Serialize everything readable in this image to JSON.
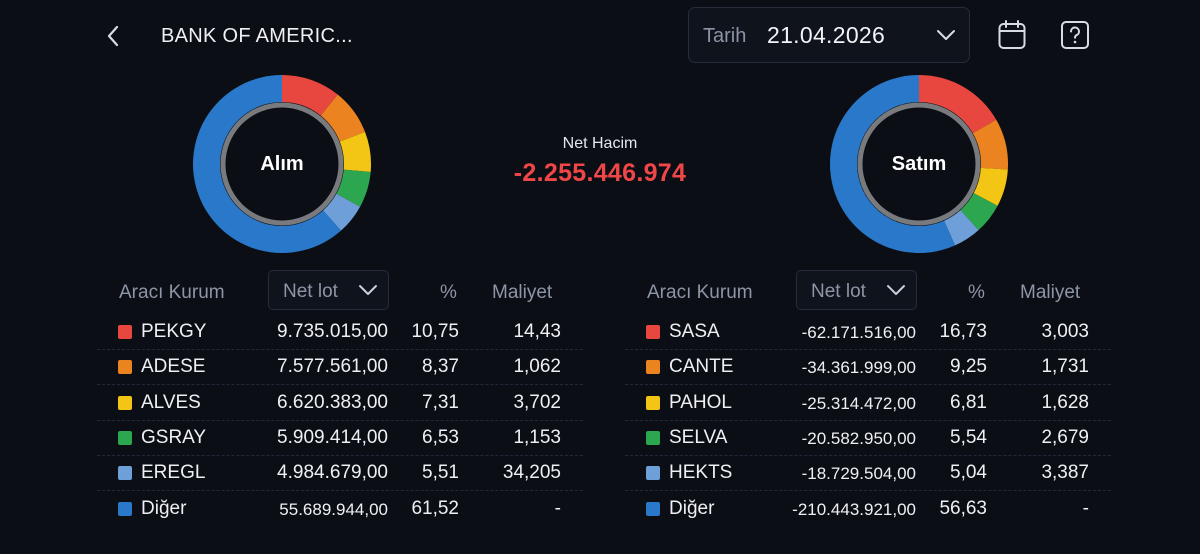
{
  "header": {
    "title": "BANK OF AMERIC...",
    "date_label": "Tarih",
    "date_value": "21.04.2026"
  },
  "icons": {
    "back": "chevron-left-icon",
    "date_dropdown": "chevron-down-icon",
    "calendar": "calendar-icon",
    "help": "help-icon"
  },
  "net": {
    "label": "Net Hacim",
    "value": "-2.255.446.974",
    "color": "#ef4747"
  },
  "colors": {
    "red": "#e8473f",
    "orange": "#ec8321",
    "yellow": "#f3c514",
    "green": "#2ca64f",
    "lightblue": "#6e9fd8",
    "blue": "#2a78c9"
  },
  "chart_data": [
    {
      "type": "pie",
      "title": "Alım",
      "categories": [
        "PEKGY",
        "ADESE",
        "ALVES",
        "GSRAY",
        "EREGL",
        "Diğer"
      ],
      "values": [
        10.75,
        8.37,
        7.31,
        6.53,
        5.51,
        61.52
      ],
      "colors": [
        "#e8473f",
        "#ec8321",
        "#f3c514",
        "#2ca64f",
        "#6e9fd8",
        "#2a78c9"
      ]
    },
    {
      "type": "pie",
      "title": "Satım",
      "categories": [
        "SASA",
        "CANTE",
        "PAHOL",
        "SELVA",
        "HEKTS",
        "Diğer"
      ],
      "values": [
        16.73,
        9.25,
        6.81,
        5.54,
        5.04,
        56.63
      ],
      "colors": [
        "#e8473f",
        "#ec8321",
        "#f3c514",
        "#2ca64f",
        "#6e9fd8",
        "#2a78c9"
      ]
    }
  ],
  "buy_table": {
    "headers": {
      "broker": "Aracı Kurum",
      "sort": "Net lot",
      "pct": "%",
      "cost": "Maliyet"
    },
    "rows": [
      {
        "name": "PEKGY",
        "lot": "9.735.015,00",
        "pct": "10,75",
        "cost": "14,43",
        "color": "#e8473f"
      },
      {
        "name": "ADESE",
        "lot": "7.577.561,00",
        "pct": "8,37",
        "cost": "1,062",
        "color": "#ec8321"
      },
      {
        "name": "ALVES",
        "lot": "6.620.383,00",
        "pct": "7,31",
        "cost": "3,702",
        "color": "#f3c514"
      },
      {
        "name": "GSRAY",
        "lot": "5.909.414,00",
        "pct": "6,53",
        "cost": "1,153",
        "color": "#2ca64f"
      },
      {
        "name": "EREGL",
        "lot": "4.984.679,00",
        "pct": "5,51",
        "cost": "34,205",
        "color": "#6e9fd8"
      },
      {
        "name": "Diğer",
        "lot": "55.689.944,00",
        "pct": "61,52",
        "cost": "-",
        "color": "#2a78c9"
      }
    ]
  },
  "sell_table": {
    "headers": {
      "broker": "Aracı Kurum",
      "sort": "Net lot",
      "pct": "%",
      "cost": "Maliyet"
    },
    "rows": [
      {
        "name": "SASA",
        "lot": "-62.171.516,00",
        "pct": "16,73",
        "cost": "3,003",
        "color": "#e8473f"
      },
      {
        "name": "CANTE",
        "lot": "-34.361.999,00",
        "pct": "9,25",
        "cost": "1,731",
        "color": "#ec8321"
      },
      {
        "name": "PAHOL",
        "lot": "-25.314.472,00",
        "pct": "6,81",
        "cost": "1,628",
        "color": "#f3c514"
      },
      {
        "name": "SELVA",
        "lot": "-20.582.950,00",
        "pct": "5,54",
        "cost": "2,679",
        "color": "#2ca64f"
      },
      {
        "name": "HEKTS",
        "lot": "-18.729.504,00",
        "pct": "5,04",
        "cost": "3,387",
        "color": "#6e9fd8"
      },
      {
        "name": "Diğer",
        "lot": "-210.443.921,00",
        "pct": "56,63",
        "cost": "-",
        "color": "#2a78c9"
      }
    ]
  }
}
